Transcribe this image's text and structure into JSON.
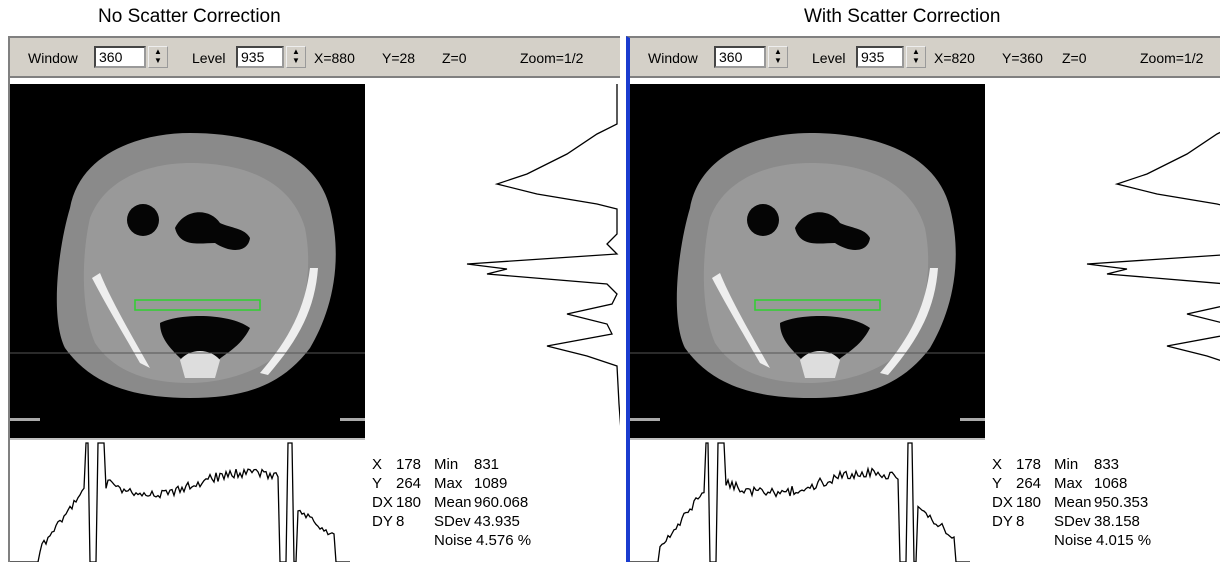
{
  "panels": [
    {
      "title": "No Scatter Correction",
      "toolbar": {
        "window_label": "Window",
        "window": "360",
        "level_label": "Level",
        "level": "935",
        "x": "X=880",
        "y": "Y=28",
        "z": "Z=0",
        "zoom": "Zoom=1/2"
      },
      "stats": {
        "rows": [
          [
            "X",
            "178"
          ],
          [
            "Y",
            "264"
          ],
          [
            "DX",
            "180"
          ],
          [
            "DY",
            "8"
          ]
        ],
        "measures": [
          [
            "Min",
            "831"
          ],
          [
            "Max",
            "1089"
          ],
          [
            "Mean",
            "960.068"
          ],
          [
            "SDev",
            "43.935"
          ],
          [
            "Noise",
            "4.576 %"
          ]
        ]
      }
    },
    {
      "title": "With Scatter Correction",
      "toolbar": {
        "window_label": "Window",
        "window": "360",
        "level_label": "Level",
        "level": "935",
        "x": "X=820",
        "y": "Y=360",
        "z": "Z=0",
        "zoom": "Zoom=1/2"
      },
      "stats": {
        "rows": [
          [
            "X",
            "178"
          ],
          [
            "Y",
            "264"
          ],
          [
            "DX",
            "180"
          ],
          [
            "DY",
            "8"
          ]
        ],
        "measures": [
          [
            "Min",
            "833"
          ],
          [
            "Max",
            "1068"
          ],
          [
            "Mean",
            "950.353"
          ],
          [
            "SDev",
            "38.158"
          ],
          [
            "Noise",
            "4.015 %"
          ]
        ]
      }
    }
  ]
}
